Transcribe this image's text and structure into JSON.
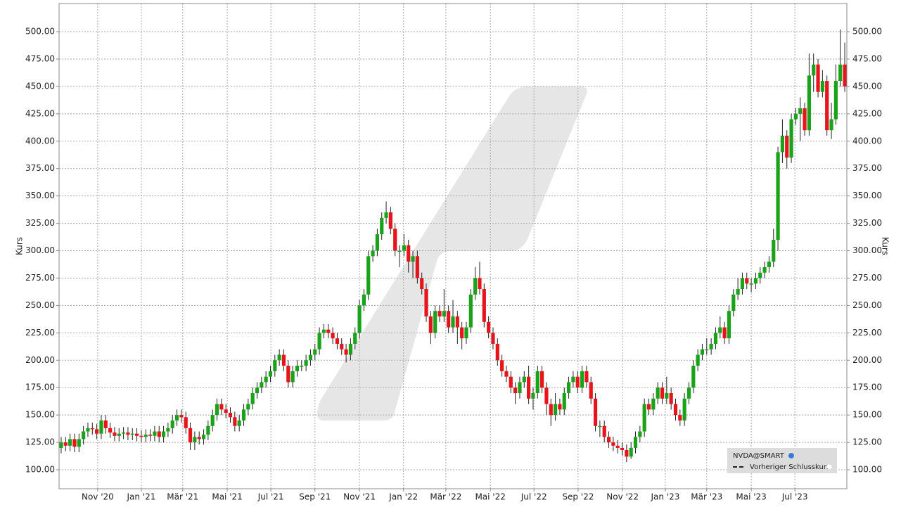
{
  "chart_data": {
    "type": "candlestick",
    "y_axis_label": "Kurs",
    "legend": {
      "entries": [
        "NVDA@SMART",
        "Vorheriger Schlusskurs"
      ],
      "position": "lower right"
    },
    "up_color": "#1aa31a",
    "down_color": "#e8141b",
    "grid": true,
    "xlim": [
      -0.47,
      176.47
    ],
    "ylim": [
      82.7,
      525.7
    ],
    "xticks": [
      {
        "value": 8.2,
        "label": "Nov '20"
      },
      {
        "value": 18.0,
        "label": "Jan '21"
      },
      {
        "value": 27.3,
        "label": "Mär '21"
      },
      {
        "value": 37.3,
        "label": "Mai '21"
      },
      {
        "value": 47.1,
        "label": "Jul '21"
      },
      {
        "value": 57.0,
        "label": "Sep '21"
      },
      {
        "value": 67.0,
        "label": "Nov '21"
      },
      {
        "value": 76.9,
        "label": "Jan '22"
      },
      {
        "value": 86.4,
        "label": "Mär '22"
      },
      {
        "value": 96.4,
        "label": "Mai '22"
      },
      {
        "value": 106.2,
        "label": "Jul '22"
      },
      {
        "value": 116.1,
        "label": "Sep '22"
      },
      {
        "value": 126.1,
        "label": "Nov '22"
      },
      {
        "value": 135.7,
        "label": "Jan '23"
      },
      {
        "value": 145.0,
        "label": "Mär '23"
      },
      {
        "value": 155.0,
        "label": "Mai '23"
      },
      {
        "value": 164.8,
        "label": "Jul '23"
      }
    ],
    "yticks": [
      {
        "value": 100,
        "label": "100.00"
      },
      {
        "value": 125,
        "label": "125.00"
      },
      {
        "value": 150,
        "label": "150.00"
      },
      {
        "value": 175,
        "label": "175.00"
      },
      {
        "value": 200,
        "label": "200.00"
      },
      {
        "value": 225,
        "label": "225.00"
      },
      {
        "value": 250,
        "label": "250.00"
      },
      {
        "value": 275,
        "label": "275.00"
      },
      {
        "value": 300,
        "label": "300.00"
      },
      {
        "value": 325,
        "label": "325.00"
      },
      {
        "value": 350,
        "label": "350.00"
      },
      {
        "value": 375,
        "label": "375.00"
      },
      {
        "value": 400,
        "label": "400.00"
      },
      {
        "value": 425,
        "label": "425.00"
      },
      {
        "value": 450,
        "label": "450.00"
      },
      {
        "value": 475,
        "label": "475.00"
      },
      {
        "value": 500,
        "label": "500.00"
      }
    ],
    "open": [
      120,
      125,
      122,
      128,
      121,
      128,
      135,
      138,
      137,
      133,
      145,
      138,
      134,
      131,
      133,
      134,
      132,
      133,
      131,
      130,
      132,
      131,
      135,
      130,
      135,
      138,
      145,
      150,
      148,
      138,
      125,
      130,
      128,
      132,
      140,
      150,
      160,
      155,
      152,
      148,
      140,
      145,
      155,
      160,
      170,
      175,
      180,
      185,
      190,
      200,
      205,
      195,
      180,
      190,
      195,
      195,
      200,
      205,
      210,
      225,
      228,
      225,
      220,
      215,
      210,
      205,
      215,
      225,
      250,
      260,
      295,
      300,
      315,
      330,
      335,
      320,
      300,
      300,
      305,
      290,
      295,
      275,
      265,
      240,
      225,
      245,
      240,
      245,
      230,
      240,
      230,
      220,
      230,
      260,
      275,
      265,
      235,
      225,
      215,
      200,
      190,
      185,
      175,
      170,
      180,
      185,
      165,
      170,
      190,
      175,
      160,
      150,
      160,
      155,
      170,
      180,
      185,
      175,
      190,
      180,
      165,
      140,
      140,
      130,
      125,
      122,
      120,
      118,
      112,
      120,
      130,
      135,
      160,
      155,
      165,
      175,
      165,
      170,
      160,
      150,
      145,
      165,
      175,
      195,
      205,
      210,
      210,
      215,
      225,
      230,
      220,
      245,
      260,
      265,
      275,
      270,
      270,
      275,
      280,
      285,
      290,
      310,
      390,
      405,
      385,
      420,
      425,
      430,
      410,
      460,
      470,
      445,
      455,
      410,
      420,
      455,
      470
    ],
    "high": [
      130,
      130,
      133,
      133,
      133,
      140,
      143,
      143,
      142,
      150,
      150,
      143,
      139,
      138,
      139,
      139,
      138,
      138,
      136,
      137,
      137,
      140,
      140,
      140,
      143,
      150,
      155,
      155,
      153,
      143,
      135,
      135,
      137,
      145,
      155,
      165,
      165,
      160,
      157,
      153,
      150,
      160,
      165,
      175,
      180,
      185,
      190,
      195,
      205,
      210,
      210,
      200,
      195,
      200,
      200,
      205,
      210,
      215,
      230,
      233,
      233,
      230,
      225,
      220,
      215,
      220,
      230,
      255,
      265,
      300,
      305,
      320,
      335,
      345,
      340,
      325,
      305,
      315,
      310,
      300,
      300,
      280,
      270,
      245,
      250,
      250,
      265,
      250,
      255,
      245,
      235,
      235,
      265,
      285,
      290,
      270,
      240,
      230,
      220,
      205,
      195,
      190,
      180,
      185,
      190,
      195,
      175,
      195,
      195,
      180,
      165,
      170,
      165,
      175,
      185,
      190,
      190,
      195,
      195,
      185,
      170,
      145,
      145,
      135,
      130,
      127,
      125,
      123,
      125,
      135,
      140,
      165,
      165,
      170,
      180,
      180,
      185,
      175,
      165,
      155,
      170,
      180,
      200,
      210,
      215,
      220,
      220,
      230,
      240,
      235,
      250,
      265,
      275,
      280,
      280,
      275,
      280,
      285,
      290,
      295,
      320,
      395,
      420,
      410,
      425,
      430,
      440,
      435,
      480,
      480,
      475,
      465,
      460,
      435,
      470,
      502,
      490
    ],
    "low": [
      115,
      117,
      117,
      116,
      116,
      123,
      130,
      132,
      128,
      128,
      133,
      129,
      126,
      126,
      128,
      127,
      127,
      126,
      125,
      125,
      126,
      126,
      125,
      125,
      130,
      133,
      140,
      143,
      133,
      118,
      118,
      123,
      123,
      127,
      135,
      145,
      150,
      147,
      143,
      135,
      135,
      140,
      150,
      155,
      165,
      170,
      175,
      180,
      185,
      195,
      190,
      175,
      175,
      185,
      190,
      190,
      195,
      200,
      205,
      220,
      220,
      215,
      210,
      205,
      198,
      200,
      210,
      220,
      245,
      255,
      290,
      295,
      310,
      325,
      315,
      295,
      285,
      295,
      280,
      275,
      270,
      260,
      235,
      215,
      220,
      235,
      235,
      225,
      225,
      215,
      210,
      215,
      225,
      255,
      260,
      230,
      220,
      210,
      195,
      185,
      180,
      170,
      160,
      165,
      175,
      160,
      155,
      165,
      170,
      150,
      140,
      145,
      150,
      150,
      165,
      175,
      170,
      170,
      175,
      160,
      135,
      130,
      125,
      120,
      117,
      115,
      113,
      107,
      110,
      115,
      125,
      130,
      150,
      150,
      160,
      160,
      160,
      155,
      145,
      140,
      140,
      160,
      170,
      190,
      200,
      205,
      205,
      210,
      220,
      215,
      215,
      240,
      255,
      260,
      265,
      262,
      265,
      270,
      275,
      280,
      285,
      300,
      380,
      375,
      380,
      415,
      400,
      405,
      405,
      445,
      440,
      440,
      405,
      402,
      415,
      450,
      445
    ],
    "close": [
      125,
      122,
      128,
      121,
      128,
      135,
      138,
      137,
      133,
      145,
      138,
      134,
      131,
      133,
      134,
      132,
      133,
      131,
      130,
      132,
      131,
      135,
      130,
      135,
      138,
      145,
      150,
      148,
      138,
      125,
      130,
      128,
      132,
      140,
      150,
      160,
      155,
      152,
      148,
      140,
      145,
      155,
      160,
      170,
      175,
      180,
      185,
      190,
      200,
      205,
      195,
      180,
      190,
      195,
      195,
      200,
      205,
      210,
      225,
      228,
      225,
      220,
      215,
      210,
      205,
      215,
      225,
      250,
      260,
      295,
      300,
      315,
      330,
      335,
      320,
      300,
      300,
      305,
      290,
      295,
      275,
      265,
      240,
      225,
      245,
      240,
      245,
      230,
      240,
      230,
      220,
      230,
      260,
      275,
      265,
      235,
      225,
      215,
      200,
      190,
      185,
      175,
      170,
      180,
      185,
      165,
      170,
      190,
      175,
      160,
      150,
      160,
      155,
      170,
      180,
      185,
      175,
      190,
      180,
      165,
      140,
      140,
      130,
      125,
      122,
      120,
      118,
      112,
      120,
      130,
      135,
      160,
      155,
      165,
      175,
      165,
      170,
      160,
      150,
      145,
      165,
      175,
      195,
      205,
      210,
      210,
      215,
      225,
      230,
      220,
      245,
      260,
      265,
      275,
      270,
      270,
      275,
      280,
      285,
      290,
      310,
      390,
      405,
      385,
      420,
      425,
      430,
      410,
      460,
      470,
      445,
      455,
      410,
      420,
      455,
      470,
      450
    ]
  }
}
